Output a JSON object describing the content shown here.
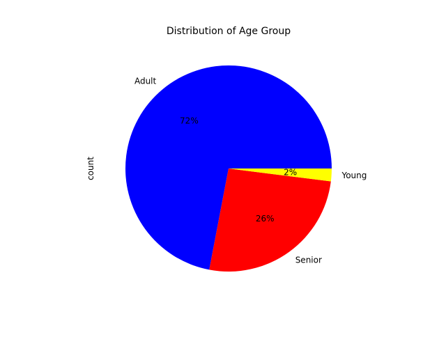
{
  "chart_data": {
    "type": "pie",
    "title": "Distribution of Age Group",
    "ylabel": "count",
    "slices": [
      {
        "label": "Adult",
        "value": 72,
        "percent_label": "72%",
        "color": "#0000ff"
      },
      {
        "label": "Senior",
        "value": 26,
        "percent_label": "26%",
        "color": "#ff0000"
      },
      {
        "label": "Young",
        "value": 2,
        "percent_label": "2%",
        "color": "#ffff00"
      }
    ],
    "start_angle_deg": 0,
    "direction": "counterclockwise"
  }
}
